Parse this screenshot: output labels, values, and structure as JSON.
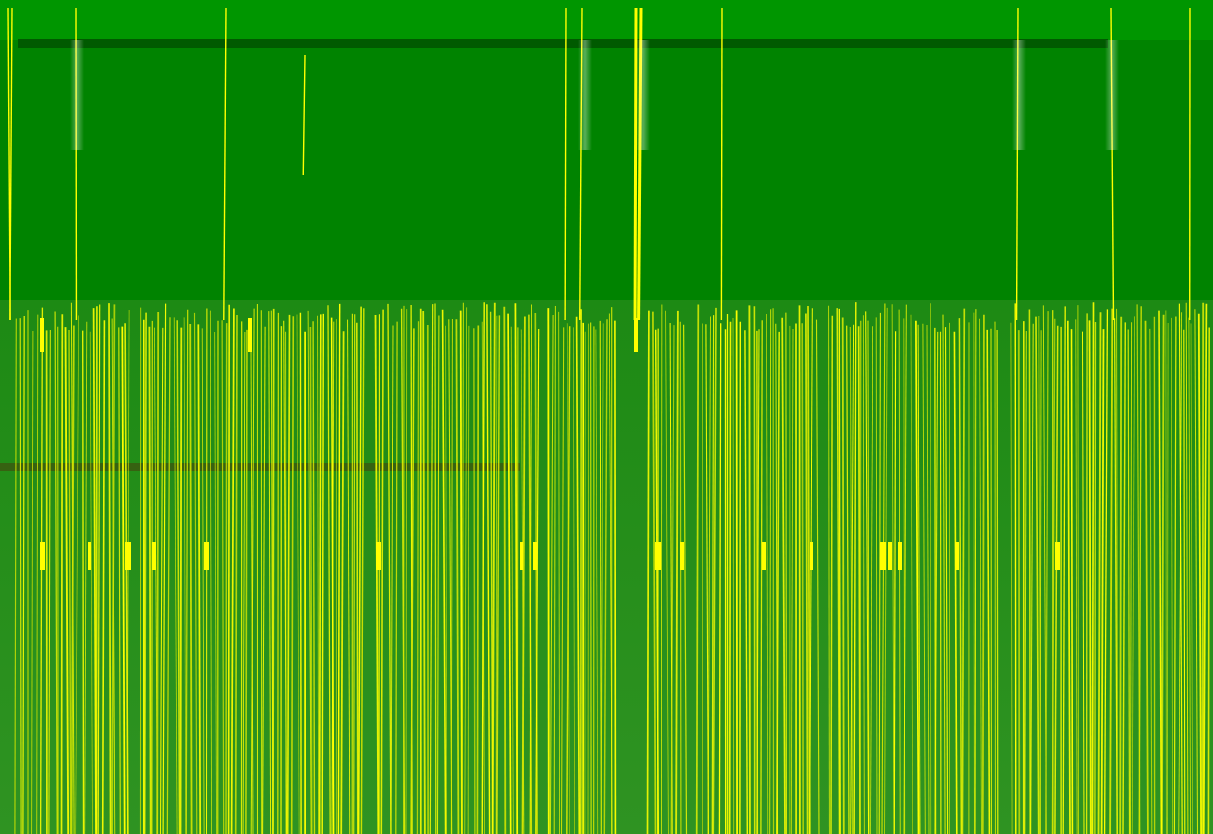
{
  "colors": {
    "top_band": "#009600",
    "background": "#008300",
    "lower_field": "#2a8f1c",
    "dark_bar": "#005a00",
    "stroke_primary": "#ffff00",
    "stroke_secondary": "#d6e600"
  }
}
